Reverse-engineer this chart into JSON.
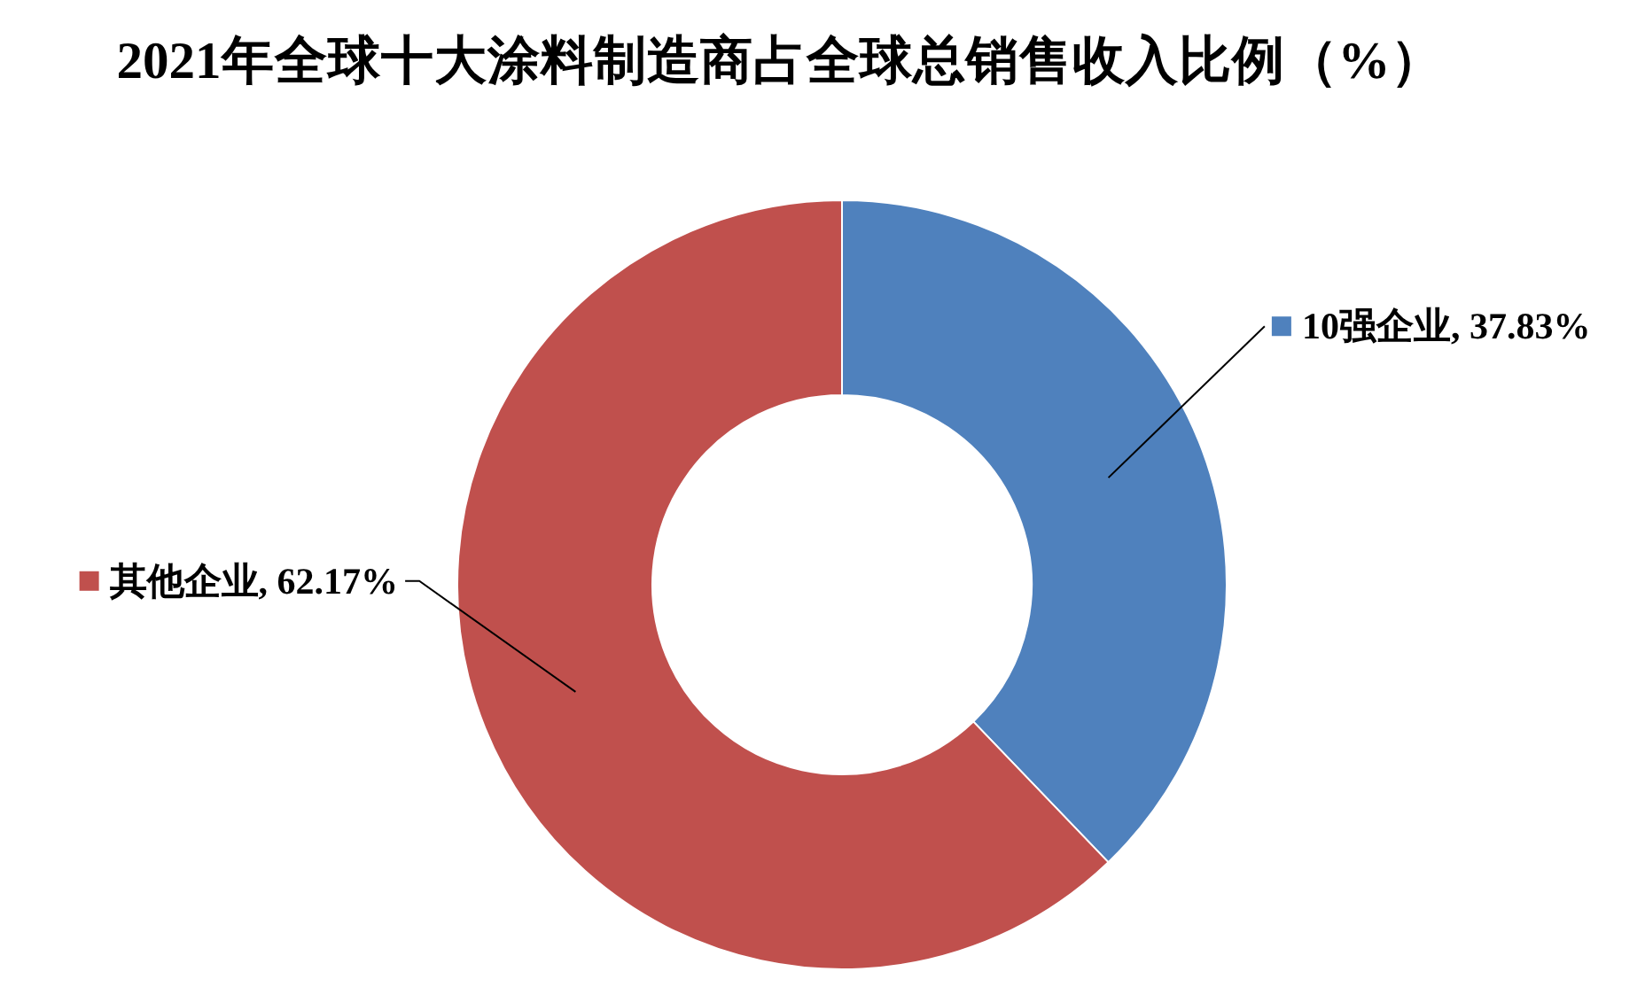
{
  "chart_data": {
    "type": "donut",
    "title": "2021年全球十大涂料制造商占全球总销售收入比例（%）",
    "categories": [
      "10强企业",
      "其他企业"
    ],
    "values": [
      37.83,
      62.17
    ],
    "colors": [
      "#4f81bd",
      "#c0504d"
    ],
    "value_labels": [
      "37.83%",
      "62.17%"
    ],
    "legend": "left"
  }
}
